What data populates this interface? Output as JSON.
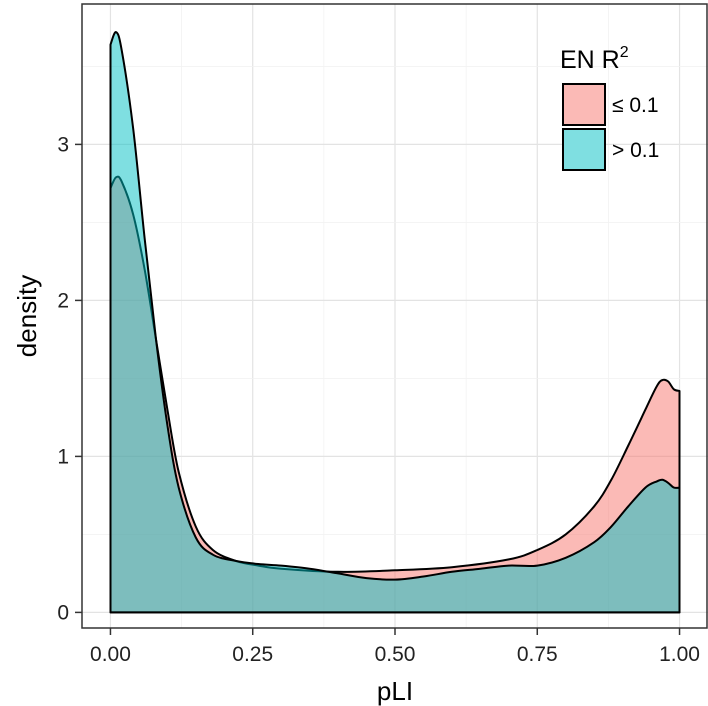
{
  "chart_data": {
    "type": "area",
    "xlabel": "pLI",
    "ylabel": "density",
    "xlim": [
      -0.05,
      1.05
    ],
    "ylim": [
      -0.1,
      3.9
    ],
    "x_ticks": [
      0.0,
      0.25,
      0.5,
      0.75,
      1.0
    ],
    "x_tick_labels": [
      "0.00",
      "0.25",
      "0.50",
      "0.75",
      "1.00"
    ],
    "y_ticks": [
      0,
      1,
      2,
      3
    ],
    "y_tick_labels": [
      "0",
      "1",
      "2",
      "3"
    ],
    "grid": true,
    "legend": {
      "title": "EN R",
      "title_superscript": "2",
      "placement": "top-right"
    },
    "series": [
      {
        "name": "≤ 0.1",
        "color": "#F8766D",
        "x": [
          0.0,
          0.01,
          0.02,
          0.04,
          0.06,
          0.08,
          0.1,
          0.12,
          0.15,
          0.18,
          0.22,
          0.26,
          0.3,
          0.4,
          0.5,
          0.6,
          0.7,
          0.75,
          0.8,
          0.85,
          0.88,
          0.91,
          0.94,
          0.96,
          0.97,
          0.98,
          0.99,
          1.0
        ],
        "y": [
          2.72,
          2.79,
          2.76,
          2.55,
          2.2,
          1.75,
          1.3,
          0.9,
          0.55,
          0.4,
          0.33,
          0.3,
          0.28,
          0.26,
          0.27,
          0.29,
          0.34,
          0.4,
          0.5,
          0.68,
          0.85,
          1.07,
          1.3,
          1.45,
          1.49,
          1.48,
          1.43,
          1.42
        ]
      },
      {
        "name": "> 0.1",
        "color": "#00BFC4",
        "x": [
          0.0,
          0.01,
          0.02,
          0.04,
          0.06,
          0.08,
          0.1,
          0.12,
          0.15,
          0.18,
          0.22,
          0.26,
          0.3,
          0.35,
          0.4,
          0.45,
          0.5,
          0.55,
          0.6,
          0.65,
          0.7,
          0.75,
          0.8,
          0.85,
          0.88,
          0.91,
          0.94,
          0.96,
          0.97,
          0.98,
          0.99,
          1.0
        ],
        "y": [
          3.64,
          3.72,
          3.6,
          3.1,
          2.4,
          1.75,
          1.2,
          0.8,
          0.48,
          0.37,
          0.33,
          0.31,
          0.3,
          0.28,
          0.25,
          0.22,
          0.21,
          0.23,
          0.26,
          0.28,
          0.3,
          0.3,
          0.35,
          0.45,
          0.55,
          0.68,
          0.8,
          0.84,
          0.85,
          0.83,
          0.8,
          0.8
        ]
      }
    ]
  }
}
